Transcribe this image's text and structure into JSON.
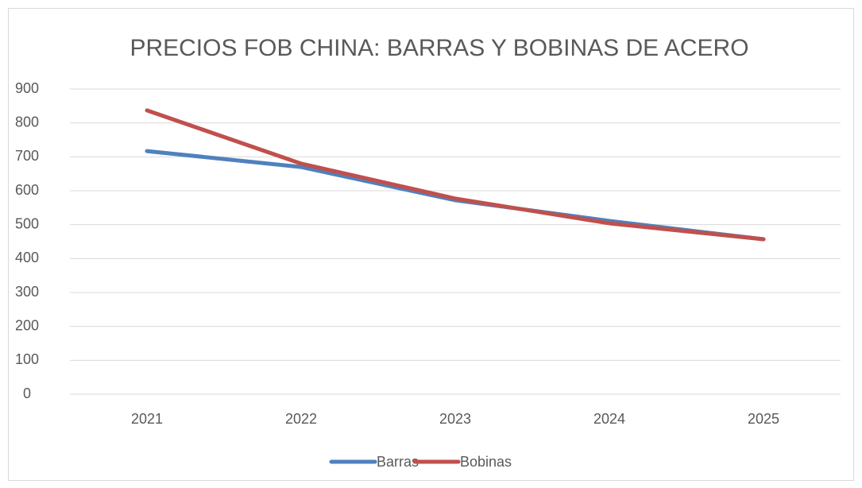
{
  "chart_data": {
    "type": "line",
    "title": "PRECIOS FOB CHINA: BARRAS Y BOBINAS DE ACERO",
    "categories": [
      "2021",
      "2022",
      "2023",
      "2024",
      "2025"
    ],
    "series": [
      {
        "name": "Barras",
        "color": "#4f81bd",
        "values": [
          717,
          670,
          572,
          511,
          457
        ]
      },
      {
        "name": "Bobinas",
        "color": "#c0504d",
        "values": [
          837,
          680,
          577,
          504,
          457
        ]
      }
    ],
    "ylim": [
      0,
      900
    ],
    "yticks": [
      0,
      100,
      200,
      300,
      400,
      500,
      600,
      700,
      800,
      900
    ],
    "grid": true,
    "legend": "bottom"
  }
}
